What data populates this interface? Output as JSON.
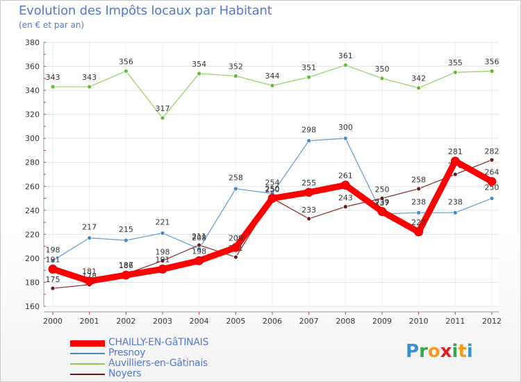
{
  "chart_data": {
    "type": "line",
    "title": "Evolution des Impôts locaux par Habitant",
    "subtitle": "(en € et par an)",
    "x": [
      "2000",
      "2001",
      "2002",
      "2003",
      "2004",
      "2005",
      "2006",
      "2007",
      "2008",
      "2009",
      "2010",
      "2011",
      "2012"
    ],
    "ylim": [
      160,
      380
    ],
    "yticks": [
      160,
      180,
      200,
      220,
      240,
      260,
      280,
      300,
      320,
      340,
      360,
      380
    ],
    "grid": true,
    "series": [
      {
        "name": "Auvilliers-en-Gâtinais",
        "color": "#88cc44",
        "values": [
          343,
          343,
          356,
          317,
          354,
          352,
          344,
          351,
          361,
          350,
          342,
          355,
          356
        ]
      },
      {
        "name": "Presnoy",
        "color": "#4488cc",
        "values": [
          198,
          217,
          215,
          221,
          208,
          258,
          254,
          298,
          300,
          237,
          238,
          238,
          250
        ]
      },
      {
        "name": "Noyers",
        "color": "#6b1a1a",
        "values": [
          175,
          178,
          187,
          198,
          211,
          201,
          250,
          233,
          243,
          250,
          258,
          270,
          282
        ]
      },
      {
        "name": "CHAILLY-EN-GâTINAIS",
        "color": "#ff0000",
        "values": [
          191,
          181,
          186,
          191,
          198,
          209,
          250,
          255,
          261,
          239,
          222,
          281,
          264
        ]
      }
    ]
  },
  "legend": [
    {
      "label": "CHAILLY-EN-GâTINAIS",
      "color": "#ff0000",
      "width": 9
    },
    {
      "label": "Presnoy",
      "color": "#4488cc",
      "width": 2
    },
    {
      "label": "Auvilliers-en-Gâtinais",
      "color": "#88cc44",
      "width": 2
    },
    {
      "label": "Noyers",
      "color": "#6b1a1a",
      "width": 2
    }
  ],
  "brand": {
    "letters": [
      "P",
      "r",
      "o",
      "x",
      "i",
      "t",
      "i"
    ],
    "colors": [
      "#3a8fd0",
      "#2fa84f",
      "#f29a1b",
      "#e02020",
      "#2fa84f",
      "#f29a1b",
      "#3a8fd0"
    ]
  }
}
